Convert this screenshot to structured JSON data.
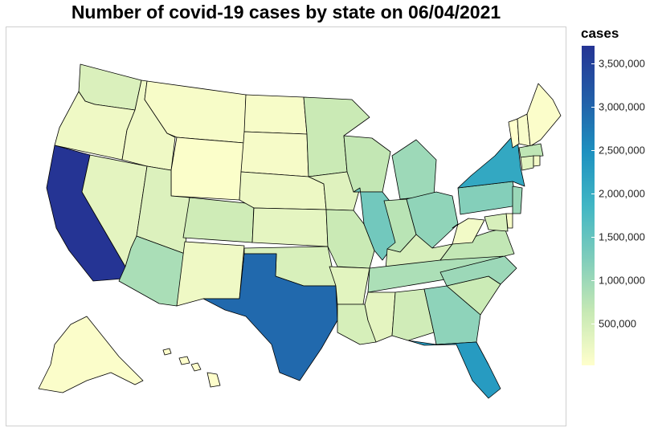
{
  "title": "Number of covid-19 cases by state on 06/04/2021",
  "legend": {
    "title": "cases",
    "ticks": [
      {
        "value": 3500000,
        "label": "3,500,000"
      },
      {
        "value": 3000000,
        "label": "3,000,000"
      },
      {
        "value": 2500000,
        "label": "2,500,000"
      },
      {
        "value": 2000000,
        "label": "2,000,000"
      },
      {
        "value": 1500000,
        "label": "1,500,000"
      },
      {
        "value": 1000000,
        "label": "1,000,000"
      },
      {
        "value": 500000,
        "label": "500,000"
      }
    ],
    "min": 20000,
    "max": 3700000,
    "colors": [
      "#ffffcc",
      "#c7e9b4",
      "#7fcdbb",
      "#41b6c4",
      "#1d91c0",
      "#225ea8",
      "#253494"
    ]
  },
  "states": [
    {
      "name": "WA",
      "cases": 430000
    },
    {
      "name": "OR",
      "cases": 200000
    },
    {
      "name": "CA",
      "cases": 3700000
    },
    {
      "name": "NV",
      "cases": 320000
    },
    {
      "name": "ID",
      "cases": 190000
    },
    {
      "name": "MT",
      "cases": 110000
    },
    {
      "name": "WY",
      "cases": 60000
    },
    {
      "name": "UT",
      "cases": 400000
    },
    {
      "name": "AZ",
      "cases": 880000
    },
    {
      "name": "CO",
      "cases": 550000
    },
    {
      "name": "NM",
      "cases": 200000
    },
    {
      "name": "ND",
      "cases": 110000
    },
    {
      "name": "SD",
      "cases": 120000
    },
    {
      "name": "NE",
      "cases": 220000
    },
    {
      "name": "KS",
      "cases": 310000
    },
    {
      "name": "OK",
      "cases": 450000
    },
    {
      "name": "TX",
      "cases": 2950000
    },
    {
      "name": "MN",
      "cases": 600000
    },
    {
      "name": "IA",
      "cases": 370000
    },
    {
      "name": "MO",
      "cases": 600000
    },
    {
      "name": "AR",
      "cases": 340000
    },
    {
      "name": "LA",
      "cases": 470000
    },
    {
      "name": "WI",
      "cases": 670000
    },
    {
      "name": "IL",
      "cases": 1380000
    },
    {
      "name": "MI",
      "cases": 990000
    },
    {
      "name": "IN",
      "cases": 750000
    },
    {
      "name": "OH",
      "cases": 1100000
    },
    {
      "name": "KY",
      "cases": 460000
    },
    {
      "name": "TN",
      "cases": 860000
    },
    {
      "name": "MS",
      "cases": 320000
    },
    {
      "name": "AL",
      "cases": 540000
    },
    {
      "name": "GA",
      "cases": 1120000
    },
    {
      "name": "FL",
      "cases": 2300000
    },
    {
      "name": "SC",
      "cases": 590000
    },
    {
      "name": "NC",
      "cases": 1000000
    },
    {
      "name": "VA",
      "cases": 680000
    },
    {
      "name": "WV",
      "cases": 160000
    },
    {
      "name": "PA",
      "cases": 1200000
    },
    {
      "name": "NY",
      "cases": 2100000
    },
    {
      "name": "NJ",
      "cases": 1020000
    },
    {
      "name": "DE",
      "cases": 110000
    },
    {
      "name": "MD",
      "cases": 460000
    },
    {
      "name": "VT",
      "cases": 24000
    },
    {
      "name": "NH",
      "cases": 99000
    },
    {
      "name": "ME",
      "cases": 68000
    },
    {
      "name": "MA",
      "cases": 700000
    },
    {
      "name": "CT",
      "cases": 350000
    },
    {
      "name": "RI",
      "cases": 150000
    },
    {
      "name": "AK",
      "cases": 68000
    },
    {
      "name": "HI",
      "cases": 35000
    }
  ]
}
